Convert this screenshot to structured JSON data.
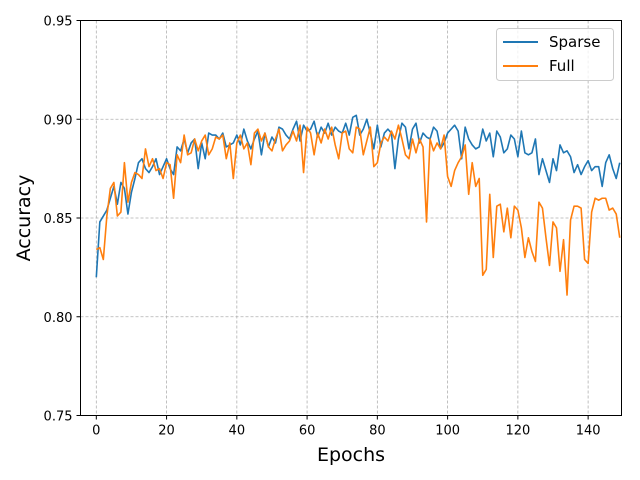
{
  "chart_data": {
    "type": "line",
    "title": "",
    "xlabel": "Epochs",
    "ylabel": "Accuracy",
    "xlim": [
      -4.5,
      149.5
    ],
    "ylim": [
      0.75,
      0.95
    ],
    "x_ticks": [
      0,
      20,
      40,
      60,
      80,
      100,
      120,
      140
    ],
    "y_ticks": [
      0.75,
      0.8,
      0.85,
      0.9,
      0.95
    ],
    "x_tick_labels": [
      "0",
      "20",
      "40",
      "60",
      "80",
      "100",
      "120",
      "140"
    ],
    "y_tick_labels": [
      "0.75",
      "0.80",
      "0.85",
      "0.90",
      "0.95"
    ],
    "grid": true,
    "legend_position": "top-right",
    "series": [
      {
        "name": "Sparse",
        "color": "#1f77b4",
        "values": [
          0.82,
          0.848,
          0.851,
          0.854,
          0.86,
          0.866,
          0.857,
          0.868,
          0.865,
          0.852,
          0.863,
          0.87,
          0.878,
          0.88,
          0.875,
          0.873,
          0.876,
          0.88,
          0.872,
          0.876,
          0.88,
          0.875,
          0.872,
          0.886,
          0.884,
          0.89,
          0.883,
          0.888,
          0.89,
          0.875,
          0.888,
          0.88,
          0.893,
          0.892,
          0.892,
          0.89,
          0.893,
          0.886,
          0.887,
          0.888,
          0.892,
          0.887,
          0.895,
          0.889,
          0.885,
          0.89,
          0.894,
          0.882,
          0.893,
          0.886,
          0.891,
          0.888,
          0.896,
          0.895,
          0.892,
          0.89,
          0.895,
          0.899,
          0.889,
          0.897,
          0.894,
          0.895,
          0.899,
          0.891,
          0.896,
          0.893,
          0.898,
          0.892,
          0.896,
          0.894,
          0.893,
          0.898,
          0.892,
          0.901,
          0.902,
          0.892,
          0.895,
          0.9,
          0.893,
          0.885,
          0.897,
          0.886,
          0.893,
          0.895,
          0.893,
          0.875,
          0.89,
          0.898,
          0.896,
          0.885,
          0.895,
          0.898,
          0.888,
          0.893,
          0.891,
          0.89,
          0.896,
          0.894,
          0.885,
          0.888,
          0.893,
          0.895,
          0.897,
          0.894,
          0.88,
          0.896,
          0.89,
          0.887,
          0.885,
          0.886,
          0.895,
          0.889,
          0.893,
          0.881,
          0.894,
          0.891,
          0.883,
          0.885,
          0.892,
          0.89,
          0.881,
          0.894,
          0.883,
          0.882,
          0.883,
          0.89,
          0.872,
          0.88,
          0.874,
          0.868,
          0.88,
          0.874,
          0.887,
          0.883,
          0.884,
          0.881,
          0.873,
          0.877,
          0.872,
          0.876,
          0.879,
          0.874,
          0.876,
          0.876,
          0.866,
          0.878,
          0.882,
          0.875,
          0.87,
          0.878
        ]
      },
      {
        "name": "Full",
        "color": "#ff7f0e",
        "values": [
          0.834,
          0.835,
          0.829,
          0.851,
          0.865,
          0.868,
          0.851,
          0.853,
          0.878,
          0.858,
          0.868,
          0.873,
          0.872,
          0.87,
          0.885,
          0.876,
          0.88,
          0.874,
          0.875,
          0.87,
          0.878,
          0.877,
          0.86,
          0.882,
          0.878,
          0.892,
          0.882,
          0.883,
          0.89,
          0.884,
          0.889,
          0.892,
          0.882,
          0.885,
          0.891,
          0.89,
          0.892,
          0.88,
          0.888,
          0.87,
          0.888,
          0.892,
          0.885,
          0.888,
          0.877,
          0.893,
          0.895,
          0.889,
          0.893,
          0.886,
          0.884,
          0.89,
          0.895,
          0.884,
          0.887,
          0.889,
          0.894,
          0.889,
          0.897,
          0.873,
          0.896,
          0.893,
          0.882,
          0.893,
          0.888,
          0.895,
          0.89,
          0.896,
          0.887,
          0.88,
          0.893,
          0.894,
          0.885,
          0.883,
          0.896,
          0.895,
          0.882,
          0.889,
          0.896,
          0.876,
          0.878,
          0.888,
          0.891,
          0.889,
          0.894,
          0.89,
          0.897,
          0.89,
          0.882,
          0.88,
          0.89,
          0.883,
          0.89,
          0.886,
          0.848,
          0.89,
          0.884,
          0.888,
          0.885,
          0.892,
          0.871,
          0.866,
          0.874,
          0.878,
          0.881,
          0.887,
          0.862,
          0.878,
          0.866,
          0.87,
          0.821,
          0.824,
          0.862,
          0.83,
          0.856,
          0.857,
          0.843,
          0.855,
          0.84,
          0.856,
          0.854,
          0.845,
          0.83,
          0.84,
          0.833,
          0.828,
          0.858,
          0.855,
          0.84,
          0.826,
          0.848,
          0.845,
          0.823,
          0.839,
          0.811,
          0.849,
          0.856,
          0.856,
          0.855,
          0.829,
          0.827,
          0.853,
          0.86,
          0.859,
          0.86,
          0.86,
          0.854,
          0.855,
          0.852,
          0.84
        ]
      }
    ]
  }
}
